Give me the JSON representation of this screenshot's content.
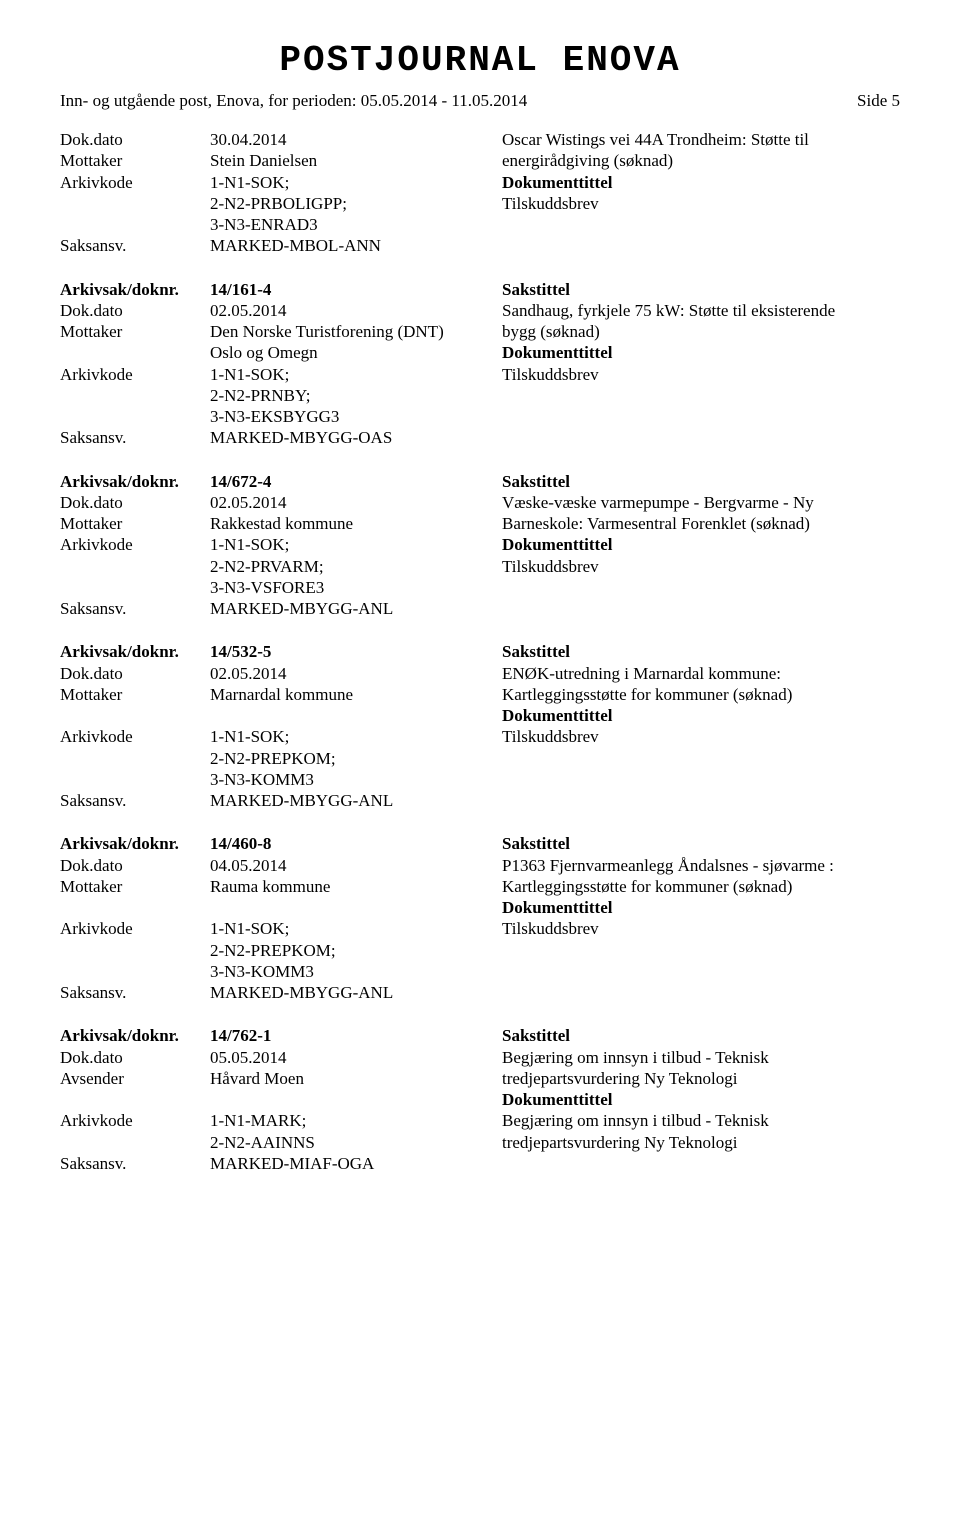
{
  "header": {
    "title": "POSTJOURNAL ENOVA",
    "subtitle": "Inn- og utgående post, Enova, for perioden: 05.05.2014 - 11.05.2014",
    "page_label": "Side 5"
  },
  "labels": {
    "dokdato": "Dok.dato",
    "mottaker": "Mottaker",
    "avsender": "Avsender",
    "arkivkode": "Arkivkode",
    "saksansv": "Saksansv.",
    "arkivsak": "Arkivsak/doknr.",
    "sakstittel": "Sakstittel",
    "dokumenttittel": "Dokumenttittel"
  },
  "entries": [
    {
      "dokdato": "30.04.2014",
      "party_label": "Mottaker",
      "party_lines": [
        "Stein Danielsen"
      ],
      "arkivkode_lines": [
        "1-N1-SOK;",
        "2-N2-PRBOLIGPP;",
        "3-N3-ENRAD3"
      ],
      "saksansv": "MARKED-MBOL-ANN",
      "right_title_lines": [
        "Oscar Wistings vei 44A Trondheim: Støtte til",
        "energirådgiving (søknad)"
      ],
      "right_doc": "Tilskuddsbrev"
    },
    {
      "arkivsak": "14/161-4",
      "dokdato": "02.05.2014",
      "party_label": "Mottaker",
      "party_lines": [
        "Den Norske Turistforening (DNT)",
        "Oslo og Omegn"
      ],
      "arkivkode_lines": [
        "1-N1-SOK;",
        "2-N2-PRNBY;",
        "3-N3-EKSBYGG3"
      ],
      "saksansv": "MARKED-MBYGG-OAS",
      "right_title_lines": [
        "Sandhaug, fyrkjele 75 kW: Støtte til eksisterende",
        "bygg (søknad)"
      ],
      "right_doc": "Tilskuddsbrev"
    },
    {
      "arkivsak": "14/672-4",
      "dokdato": "02.05.2014",
      "party_label": "Mottaker",
      "party_lines": [
        "Rakkestad kommune"
      ],
      "arkivkode_lines": [
        "1-N1-SOK;",
        "2-N2-PRVARM;",
        "3-N3-VSFORE3"
      ],
      "saksansv": "MARKED-MBYGG-ANL",
      "right_title_lines": [
        "Væske-væske varmepumpe - Bergvarme - Ny",
        "Barneskole: Varmesentral Forenklet (søknad)"
      ],
      "right_doc": "Tilskuddsbrev"
    },
    {
      "arkivsak": "14/532-5",
      "dokdato": "02.05.2014",
      "party_label": "Mottaker",
      "party_lines": [
        "Marnardal kommune"
      ],
      "arkivkode_lines": [
        "1-N1-SOK;",
        "2-N2-PREPKOM;",
        "3-N3-KOMM3"
      ],
      "saksansv": "MARKED-MBYGG-ANL",
      "right_title_lines": [
        "ENØK-utredning i Marnardal kommune:",
        "Kartleggingsstøtte for kommuner (søknad)"
      ],
      "party_gap_after": true,
      "right_doc": "Tilskuddsbrev"
    },
    {
      "arkivsak": "14/460-8",
      "dokdato": "04.05.2014",
      "party_label": "Mottaker",
      "party_lines": [
        "Rauma kommune"
      ],
      "arkivkode_lines": [
        "1-N1-SOK;",
        "2-N2-PREPKOM;",
        "3-N3-KOMM3"
      ],
      "saksansv": "MARKED-MBYGG-ANL",
      "right_title_lines": [
        "P1363 Fjernvarmeanlegg Åndalsnes - sjøvarme :",
        "Kartleggingsstøtte for kommuner (søknad)"
      ],
      "party_gap_after": true,
      "right_doc": "Tilskuddsbrev"
    },
    {
      "arkivsak": "14/762-1",
      "dokdato": "05.05.2014",
      "party_label": "Avsender",
      "party_lines": [
        "Håvard Moen"
      ],
      "arkivkode_lines": [
        "1-N1-MARK;",
        "2-N2-AAINNS"
      ],
      "saksansv": "MARKED-MIAF-OGA",
      "right_title_lines": [
        "Begjæring om innsyn i tilbud - Teknisk",
        "tredjepartsvurdering Ny Teknologi"
      ],
      "party_gap_after": true,
      "right_doc_lines": [
        "Begjæring om innsyn i tilbud - Teknisk",
        "tredjepartsvurdering Ny Teknologi"
      ]
    }
  ]
}
